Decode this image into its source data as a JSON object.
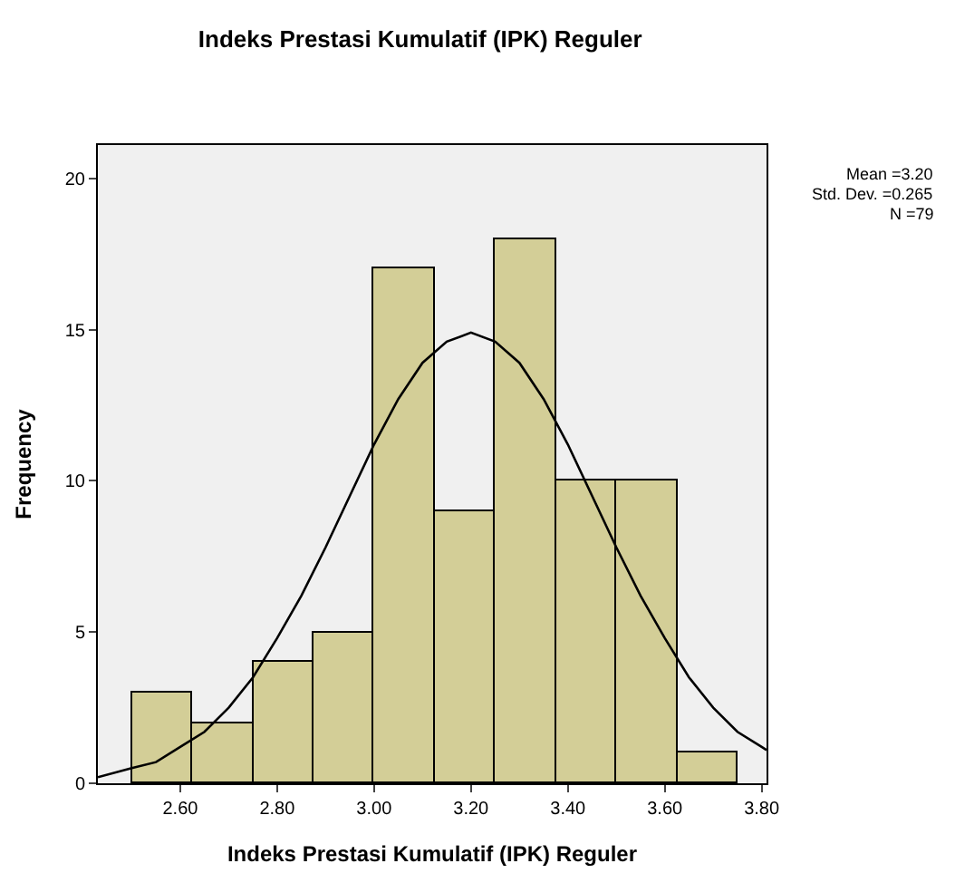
{
  "chart_data": {
    "type": "histogram",
    "title": "Indeks Prestasi Kumulatif (IPK) Reguler",
    "xlabel": "Indeks Prestasi Kumulatif (IPK) Reguler",
    "ylabel": "Frequency",
    "bins": [
      2.5,
      2.625,
      2.75,
      2.875,
      3.0,
      3.125,
      3.25,
      3.375,
      3.5,
      3.625,
      3.75
    ],
    "values": [
      3,
      2,
      4,
      5,
      17,
      9,
      18,
      10,
      10,
      1
    ],
    "color": "#d3ce97",
    "series": [
      {
        "type": "line",
        "color": "#000000",
        "x": [
          2.43,
          2.5,
          2.55,
          2.6,
          2.65,
          2.7,
          2.75,
          2.8,
          2.85,
          2.9,
          2.95,
          3.0,
          3.05,
          3.1,
          3.15,
          3.2,
          3.25,
          3.3,
          3.35,
          3.4,
          3.45,
          3.5,
          3.55,
          3.6,
          3.65,
          3.7,
          3.75,
          3.8,
          3.81
        ],
        "values": [
          0.2,
          0.5,
          0.7,
          1.2,
          1.7,
          2.5,
          3.5,
          4.8,
          6.2,
          7.8,
          9.5,
          11.2,
          12.7,
          13.9,
          14.6,
          14.9,
          14.6,
          13.9,
          12.7,
          11.2,
          9.5,
          7.8,
          6.2,
          4.8,
          3.5,
          2.5,
          1.7,
          1.2,
          1.1
        ]
      }
    ],
    "xlim": [
      2.43,
      3.81
    ],
    "ylim": [
      0,
      21.1
    ],
    "xticks": [
      {
        "value": 2.6,
        "label": "2.60"
      },
      {
        "value": 2.8,
        "label": "2.80"
      },
      {
        "value": 3.0,
        "label": "3.00"
      },
      {
        "value": 3.2,
        "label": "3.20"
      },
      {
        "value": 3.4,
        "label": "3.40"
      },
      {
        "value": 3.6,
        "label": "3.60"
      },
      {
        "value": 3.8,
        "label": "3.80"
      }
    ],
    "yticks": [
      0,
      5,
      10,
      15,
      20
    ],
    "grid": false,
    "annotations": [
      "Mean =3.20",
      "Std. Dev. =0.265",
      "N =79"
    ]
  }
}
